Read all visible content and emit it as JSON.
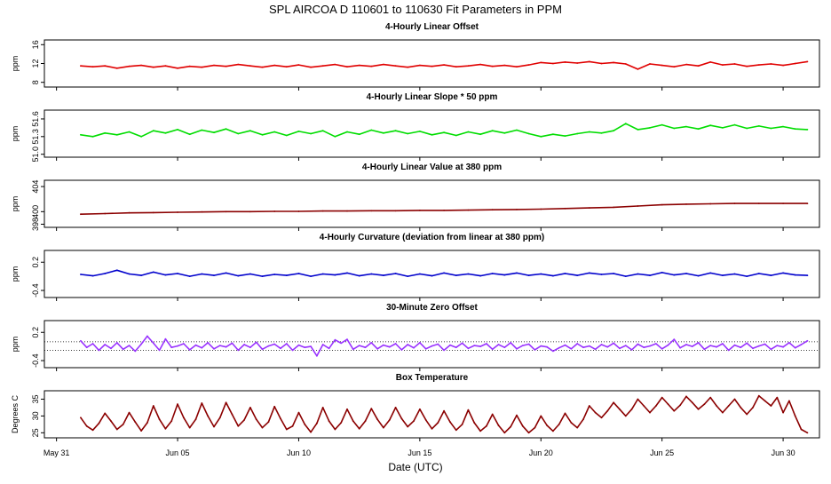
{
  "figure": {
    "title": "SPL   AIRCOA D   110601 to 110630   Fit Parameters in PPM",
    "xlabel": "Date (UTC)",
    "x_ticks": [
      {
        "day": 0,
        "label": "May 31"
      },
      {
        "day": 5,
        "label": "Jun 05"
      },
      {
        "day": 10,
        "label": "Jun 10"
      },
      {
        "day": 15,
        "label": "Jun 15"
      },
      {
        "day": 20,
        "label": "Jun 20"
      },
      {
        "day": 25,
        "label": "Jun 25"
      },
      {
        "day": 30,
        "label": "Jun 30"
      }
    ]
  },
  "chart_data": [
    {
      "type": "line",
      "title": "4-Hourly Linear Offset",
      "ylabel": "ppm",
      "color": "#e00000",
      "xlim": [
        -0.5,
        31.5
      ],
      "ylim": [
        7,
        17
      ],
      "yticks": [
        8,
        12,
        16
      ],
      "ytick_labels": [
        "8",
        "12",
        "16"
      ],
      "x": [
        1.0,
        1.5,
        2.0,
        2.5,
        3.0,
        3.5,
        4.0,
        4.5,
        5.0,
        5.5,
        6.0,
        6.5,
        7.0,
        7.5,
        8.0,
        8.5,
        9.0,
        9.5,
        10.0,
        10.5,
        11.0,
        11.5,
        12.0,
        12.5,
        13.0,
        13.5,
        14.0,
        14.5,
        15.0,
        15.5,
        16.0,
        16.5,
        17.0,
        17.5,
        18.0,
        18.5,
        19.0,
        19.5,
        20.0,
        20.5,
        21.0,
        21.5,
        22.0,
        22.5,
        23.0,
        23.5,
        24.0,
        24.5,
        25.0,
        25.5,
        26.0,
        26.5,
        27.0,
        27.5,
        28.0,
        28.5,
        29.0,
        29.5,
        30.0,
        30.5,
        31.0
      ],
      "y": [
        11.5,
        11.3,
        11.5,
        11.0,
        11.4,
        11.6,
        11.2,
        11.5,
        11.0,
        11.4,
        11.2,
        11.6,
        11.4,
        11.8,
        11.5,
        11.2,
        11.6,
        11.3,
        11.7,
        11.2,
        11.5,
        11.8,
        11.3,
        11.6,
        11.4,
        11.8,
        11.5,
        11.2,
        11.6,
        11.4,
        11.7,
        11.3,
        11.5,
        11.8,
        11.4,
        11.6,
        11.3,
        11.7,
        12.2,
        12.0,
        12.3,
        12.1,
        12.4,
        12.0,
        12.2,
        11.9,
        10.8,
        11.9,
        11.6,
        11.3,
        11.8,
        11.5,
        12.3,
        11.7,
        11.9,
        11.4,
        11.7,
        11.9,
        11.6,
        12.0,
        12.4
      ]
    },
    {
      "type": "line",
      "title": "4-Hourly Linear Slope * 50 ppm",
      "ylabel": "ppm",
      "color": "#00dd00",
      "xlim": [
        -0.5,
        31.5
      ],
      "ylim": [
        50.95,
        51.75
      ],
      "yticks": [
        51.0,
        51.3,
        51.6
      ],
      "ytick_labels": [
        "51.0",
        "51.3",
        "51.6"
      ],
      "x": [
        1.0,
        1.5,
        2.0,
        2.5,
        3.0,
        3.5,
        4.0,
        4.5,
        5.0,
        5.5,
        6.0,
        6.5,
        7.0,
        7.5,
        8.0,
        8.5,
        9.0,
        9.5,
        10.0,
        10.5,
        11.0,
        11.5,
        12.0,
        12.5,
        13.0,
        13.5,
        14.0,
        14.5,
        15.0,
        15.5,
        16.0,
        16.5,
        17.0,
        17.5,
        18.0,
        18.5,
        19.0,
        19.5,
        20.0,
        20.5,
        21.0,
        21.5,
        22.0,
        22.5,
        23.0,
        23.5,
        24.0,
        24.5,
        25.0,
        25.5,
        26.0,
        26.5,
        27.0,
        27.5,
        28.0,
        28.5,
        29.0,
        29.5,
        30.0,
        30.5,
        31.0
      ],
      "y": [
        51.33,
        51.3,
        51.36,
        51.33,
        51.38,
        51.3,
        51.4,
        51.36,
        51.42,
        51.34,
        51.41,
        51.37,
        51.43,
        51.35,
        51.4,
        51.33,
        51.38,
        51.32,
        51.39,
        51.35,
        51.4,
        51.3,
        51.38,
        51.34,
        51.41,
        51.36,
        51.4,
        51.35,
        51.39,
        51.33,
        51.37,
        51.32,
        51.38,
        51.34,
        51.4,
        51.36,
        51.41,
        51.35,
        51.3,
        51.34,
        51.31,
        51.35,
        51.38,
        51.36,
        51.4,
        51.52,
        51.42,
        51.45,
        51.5,
        51.44,
        51.47,
        51.43,
        51.49,
        51.45,
        51.5,
        51.44,
        51.48,
        51.44,
        51.47,
        51.43,
        51.42
      ]
    },
    {
      "type": "line",
      "title": "4-Hourly Linear Value at 380 ppm",
      "ylabel": "ppm",
      "color": "#8b0000",
      "xlim": [
        -0.5,
        31.5
      ],
      "ylim": [
        397.5,
        405
      ],
      "yticks": [
        398,
        400,
        404
      ],
      "ytick_labels": [
        "398",
        "400",
        "404"
      ],
      "x": [
        1.0,
        2.0,
        3.0,
        4.0,
        5.0,
        6.0,
        7.0,
        8.0,
        9.0,
        10.0,
        11.0,
        12.0,
        13.0,
        14.0,
        15.0,
        16.0,
        17.0,
        18.0,
        19.0,
        20.0,
        21.0,
        22.0,
        23.0,
        24.0,
        25.0,
        26.0,
        27.0,
        28.0,
        29.0,
        30.0,
        31.0
      ],
      "y": [
        399.6,
        399.7,
        399.8,
        399.85,
        399.9,
        399.95,
        400.0,
        400.0,
        400.05,
        400.05,
        400.1,
        400.1,
        400.15,
        400.15,
        400.2,
        400.2,
        400.25,
        400.3,
        400.35,
        400.4,
        400.5,
        400.6,
        400.7,
        400.9,
        401.1,
        401.2,
        401.25,
        401.3,
        401.3,
        401.3,
        401.3
      ]
    },
    {
      "type": "line",
      "title": "4-Hourly Curvature (deviation from linear at 380 ppm)",
      "ylabel": "ppm",
      "color": "#0000cc",
      "xlim": [
        -0.5,
        31.5
      ],
      "ylim": [
        -0.55,
        0.45
      ],
      "yticks": [
        -0.4,
        0.2
      ],
      "ytick_labels": [
        "-0.4",
        "0.2"
      ],
      "x": [
        1.0,
        1.5,
        2.0,
        2.5,
        3.0,
        3.5,
        4.0,
        4.5,
        5.0,
        5.5,
        6.0,
        6.5,
        7.0,
        7.5,
        8.0,
        8.5,
        9.0,
        9.5,
        10.0,
        10.5,
        11.0,
        11.5,
        12.0,
        12.5,
        13.0,
        13.5,
        14.0,
        14.5,
        15.0,
        15.5,
        16.0,
        16.5,
        17.0,
        17.5,
        18.0,
        18.5,
        19.0,
        19.5,
        20.0,
        20.5,
        21.0,
        21.5,
        22.0,
        22.5,
        23.0,
        23.5,
        24.0,
        24.5,
        25.0,
        25.5,
        26.0,
        26.5,
        27.0,
        27.5,
        28.0,
        28.5,
        29.0,
        29.5,
        30.0,
        30.5,
        31.0
      ],
      "y": [
        -0.06,
        -0.09,
        -0.04,
        0.03,
        -0.05,
        -0.08,
        -0.01,
        -0.07,
        -0.04,
        -0.1,
        -0.05,
        -0.08,
        -0.03,
        -0.09,
        -0.05,
        -0.1,
        -0.06,
        -0.08,
        -0.04,
        -0.1,
        -0.05,
        -0.07,
        -0.03,
        -0.09,
        -0.05,
        -0.08,
        -0.04,
        -0.1,
        -0.05,
        -0.09,
        -0.03,
        -0.08,
        -0.05,
        -0.09,
        -0.04,
        -0.07,
        -0.03,
        -0.08,
        -0.05,
        -0.09,
        -0.04,
        -0.08,
        -0.03,
        -0.06,
        -0.04,
        -0.1,
        -0.05,
        -0.08,
        -0.02,
        -0.07,
        -0.04,
        -0.09,
        -0.03,
        -0.08,
        -0.05,
        -0.1,
        -0.04,
        -0.08,
        -0.03,
        -0.07,
        -0.08
      ]
    },
    {
      "type": "line",
      "title": "30-Minute Zero Offset",
      "ylabel": "ppm",
      "color": "#9933ff",
      "xlim": [
        -0.5,
        31.5
      ],
      "ylim": [
        -0.55,
        0.45
      ],
      "yticks": [
        -0.4,
        0.2
      ],
      "ytick_labels": [
        "-0.4",
        "0.2"
      ],
      "reference_lines": [
        0.0,
        -0.18
      ],
      "x": [
        1.0,
        1.25,
        1.5,
        1.75,
        2.0,
        2.25,
        2.5,
        2.75,
        3.0,
        3.25,
        3.5,
        3.75,
        4.0,
        4.25,
        4.5,
        4.75,
        5.0,
        5.25,
        5.5,
        5.75,
        6.0,
        6.25,
        6.5,
        6.75,
        7.0,
        7.25,
        7.5,
        7.75,
        8.0,
        8.25,
        8.5,
        8.75,
        9.0,
        9.25,
        9.5,
        9.75,
        10.0,
        10.25,
        10.5,
        10.75,
        11.0,
        11.25,
        11.5,
        11.75,
        12.0,
        12.25,
        12.5,
        12.75,
        13.0,
        13.25,
        13.5,
        13.75,
        14.0,
        14.25,
        14.5,
        14.75,
        15.0,
        15.25,
        15.5,
        15.75,
        16.0,
        16.25,
        16.5,
        16.75,
        17.0,
        17.25,
        17.5,
        17.75,
        18.0,
        18.25,
        18.5,
        18.75,
        19.0,
        19.25,
        19.5,
        19.75,
        20.0,
        20.25,
        20.5,
        20.75,
        21.0,
        21.25,
        21.5,
        21.75,
        22.0,
        22.25,
        22.5,
        22.75,
        23.0,
        23.25,
        23.5,
        23.75,
        24.0,
        24.25,
        24.5,
        24.75,
        25.0,
        25.25,
        25.5,
        25.75,
        26.0,
        26.25,
        26.5,
        26.75,
        27.0,
        27.25,
        27.5,
        27.75,
        28.0,
        28.25,
        28.5,
        28.75,
        29.0,
        29.25,
        29.5,
        29.75,
        30.0,
        30.25,
        30.5,
        30.75,
        31.0
      ],
      "y": [
        0.02,
        -0.12,
        -0.04,
        -0.18,
        -0.06,
        -0.14,
        -0.02,
        -0.16,
        -0.08,
        -0.2,
        -0.05,
        0.12,
        -0.03,
        -0.18,
        0.06,
        -0.12,
        -0.09,
        -0.04,
        -0.17,
        -0.07,
        -0.13,
        -0.02,
        -0.15,
        -0.08,
        -0.11,
        -0.03,
        -0.18,
        -0.06,
        -0.12,
        -0.01,
        -0.16,
        -0.09,
        -0.05,
        -0.14,
        -0.04,
        -0.18,
        -0.07,
        -0.12,
        -0.1,
        -0.3,
        -0.06,
        -0.14,
        0.04,
        -0.03,
        0.05,
        -0.16,
        -0.08,
        -0.12,
        -0.02,
        -0.15,
        -0.07,
        -0.11,
        -0.04,
        -0.17,
        -0.06,
        -0.13,
        -0.02,
        -0.15,
        -0.09,
        -0.05,
        -0.18,
        -0.07,
        -0.12,
        -0.03,
        -0.14,
        -0.08,
        -0.1,
        -0.04,
        -0.16,
        -0.06,
        -0.12,
        -0.02,
        -0.15,
        -0.08,
        -0.05,
        -0.17,
        -0.09,
        -0.11,
        -0.2,
        -0.13,
        -0.07,
        -0.15,
        -0.04,
        -0.12,
        -0.09,
        -0.16,
        -0.06,
        -0.11,
        -0.03,
        -0.14,
        -0.08,
        -0.17,
        -0.05,
        -0.12,
        -0.09,
        -0.04,
        -0.15,
        -0.07,
        0.05,
        -0.13,
        -0.06,
        -0.1,
        -0.02,
        -0.16,
        -0.08,
        -0.11,
        -0.04,
        -0.18,
        -0.07,
        -0.12,
        -0.03,
        -0.14,
        -0.09,
        -0.05,
        -0.16,
        -0.08,
        -0.11,
        -0.02,
        -0.13,
        -0.06,
        0.02
      ]
    },
    {
      "type": "line",
      "title": "Box Temperature",
      "ylabel": "Degrees C",
      "color": "#8b0000",
      "xlim": [
        -0.5,
        31.5
      ],
      "ylim": [
        23.5,
        37.5
      ],
      "yticks": [
        25,
        30,
        35
      ],
      "ytick_labels": [
        "25",
        "30",
        "35"
      ],
      "x": [
        1.0,
        1.25,
        1.5,
        1.75,
        2.0,
        2.25,
        2.5,
        2.75,
        3.0,
        3.25,
        3.5,
        3.75,
        4.0,
        4.25,
        4.5,
        4.75,
        5.0,
        5.25,
        5.5,
        5.75,
        6.0,
        6.25,
        6.5,
        6.75,
        7.0,
        7.25,
        7.5,
        7.75,
        8.0,
        8.25,
        8.5,
        8.75,
        9.0,
        9.25,
        9.5,
        9.75,
        10.0,
        10.25,
        10.5,
        10.75,
        11.0,
        11.25,
        11.5,
        11.75,
        12.0,
        12.25,
        12.5,
        12.75,
        13.0,
        13.25,
        13.5,
        13.75,
        14.0,
        14.25,
        14.5,
        14.75,
        15.0,
        15.25,
        15.5,
        15.75,
        16.0,
        16.25,
        16.5,
        16.75,
        17.0,
        17.25,
        17.5,
        17.75,
        18.0,
        18.25,
        18.5,
        18.75,
        19.0,
        19.25,
        19.5,
        19.75,
        20.0,
        20.25,
        20.5,
        20.75,
        21.0,
        21.25,
        21.5,
        21.75,
        22.0,
        22.25,
        22.5,
        22.75,
        23.0,
        23.25,
        23.5,
        23.75,
        24.0,
        24.25,
        24.5,
        24.75,
        25.0,
        25.25,
        25.5,
        25.75,
        26.0,
        26.25,
        26.5,
        26.75,
        27.0,
        27.25,
        27.5,
        27.75,
        28.0,
        28.25,
        28.5,
        28.75,
        29.0,
        29.25,
        29.5,
        29.75,
        30.0,
        30.25,
        30.5,
        30.75,
        31.0
      ],
      "y": [
        29.5,
        27.0,
        25.8,
        27.8,
        30.8,
        28.5,
        26.0,
        27.5,
        31.0,
        28.2,
        25.6,
        28.0,
        33.0,
        29.0,
        26.2,
        28.5,
        33.5,
        29.5,
        26.5,
        29.0,
        33.8,
        30.0,
        26.8,
        29.5,
        34.0,
        30.5,
        27.0,
        28.8,
        32.5,
        29.0,
        26.5,
        28.2,
        32.8,
        29.2,
        26.0,
        27.0,
        31.0,
        27.5,
        25.2,
        27.8,
        32.5,
        28.5,
        26.0,
        28.0,
        32.0,
        28.5,
        26.2,
        28.5,
        32.2,
        29.0,
        26.5,
        28.8,
        32.5,
        29.2,
        26.8,
        28.5,
        32.0,
        28.8,
        26.2,
        28.0,
        31.5,
        28.2,
        25.8,
        27.5,
        31.8,
        28.0,
        25.5,
        27.0,
        30.5,
        27.2,
        25.0,
        26.8,
        30.2,
        27.0,
        25.0,
        26.5,
        30.0,
        27.2,
        25.5,
        27.5,
        30.8,
        28.0,
        26.5,
        29.0,
        33.0,
        31.0,
        29.5,
        31.5,
        34.0,
        32.0,
        30.0,
        32.0,
        35.0,
        33.0,
        31.0,
        33.0,
        35.5,
        33.5,
        31.5,
        33.2,
        35.8,
        34.0,
        32.0,
        33.5,
        35.5,
        33.0,
        31.0,
        33.0,
        35.0,
        32.5,
        30.5,
        32.5,
        36.0,
        34.5,
        33.0,
        35.5,
        31.0,
        34.5,
        30.0,
        26.0,
        25.0
      ]
    }
  ]
}
